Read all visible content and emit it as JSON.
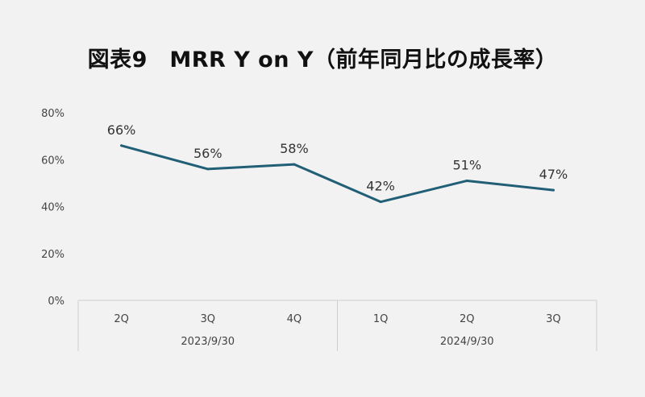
{
  "chart_data": {
    "type": "line",
    "title": "図表9　MRR Y on Y（前年同月比の成長率）",
    "xlabel": "",
    "ylabel": "",
    "categories": [
      "2Q",
      "3Q",
      "4Q",
      "1Q",
      "2Q",
      "3Q"
    ],
    "groups": [
      {
        "label": "2023/9/30",
        "categories": [
          "2Q",
          "3Q",
          "4Q"
        ]
      },
      {
        "label": "2024/9/30",
        "categories": [
          "1Q",
          "2Q",
          "3Q"
        ]
      }
    ],
    "series": [
      {
        "values": [
          66,
          56,
          58,
          42,
          51,
          47
        ],
        "color": "#215f76"
      }
    ],
    "data_labels": [
      "66%",
      "56%",
      "58%",
      "42%",
      "51%",
      "47%"
    ],
    "ylim": [
      0,
      80
    ],
    "yticks": [
      0,
      20,
      40,
      60,
      80
    ],
    "ytick_labels": [
      "0%",
      "20%",
      "40%",
      "60%",
      "80%"
    ],
    "grid": false,
    "legend": "none"
  }
}
